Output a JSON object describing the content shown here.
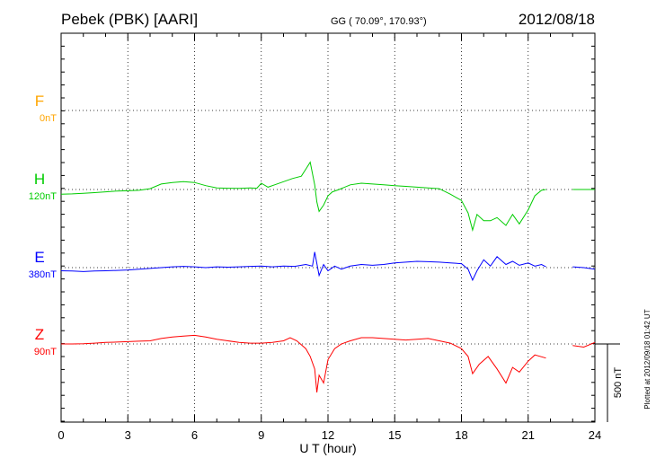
{
  "header": {
    "station": "Pebek (PBK)  [AARI]",
    "coords": "GG ( 70.09°, 170.93°)",
    "date": "2012/08/18"
  },
  "footer": {
    "plotted_note": "Plotted at 2012/09/18 01:42 UT"
  },
  "colors": {
    "F": "#ffa500",
    "H": "#00cc00",
    "E": "#0000ff",
    "Z": "#ff0000",
    "grid": "#000000"
  },
  "chart_data": {
    "type": "line",
    "title": "Pebek (PBK)  [AARI]",
    "xlabel": "U T (hour)",
    "xlim": [
      0,
      24
    ],
    "xticks": [
      0,
      3,
      6,
      9,
      12,
      15,
      18,
      21,
      24
    ],
    "scale_bar_label": "500 nT",
    "scale_bar_nT": 500,
    "grid": true,
    "components": [
      {
        "name": "F",
        "offset_label": "0nT",
        "color": "#ffa500",
        "x": [],
        "y": []
      },
      {
        "name": "H",
        "offset_label": "120nT",
        "color": "#00cc00",
        "x": [
          0,
          0.5,
          1,
          1.5,
          2,
          2.5,
          3,
          3.5,
          4,
          4.5,
          5,
          5.5,
          6,
          6.5,
          7,
          7.5,
          8,
          8.5,
          8.8,
          9,
          9.3,
          9.6,
          10,
          10.4,
          10.8,
          11,
          11.2,
          11.4,
          11.5,
          11.6,
          11.8,
          12,
          12.2,
          12.5,
          13,
          13.5,
          14,
          14.5,
          15,
          15.5,
          16,
          16.5,
          17,
          17.5,
          18,
          18.3,
          18.5,
          18.7,
          19,
          19.3,
          19.6,
          20,
          20.3,
          20.6,
          21,
          21.3,
          21.6,
          21.8,
          null,
          23,
          23.5,
          24
        ],
        "y": [
          -30,
          -28,
          -25,
          -20,
          -15,
          -10,
          -8,
          -5,
          5,
          35,
          45,
          50,
          45,
          25,
          10,
          8,
          7,
          10,
          8,
          40,
          15,
          30,
          50,
          70,
          85,
          130,
          175,
          30,
          -80,
          -140,
          -100,
          -40,
          -15,
          0,
          30,
          40,
          35,
          30,
          25,
          20,
          15,
          10,
          5,
          -30,
          -70,
          -150,
          -260,
          -160,
          -200,
          -200,
          -180,
          -230,
          -160,
          -220,
          -130,
          -40,
          -5,
          0,
          null,
          0,
          0,
          0
        ]
      },
      {
        "name": "E",
        "offset_label": "380nT",
        "color": "#0000ff",
        "x": [
          0,
          0.5,
          1,
          1.5,
          2,
          2.5,
          3,
          3.5,
          4,
          4.5,
          5,
          5.5,
          6,
          6.5,
          7,
          7.5,
          8,
          8.5,
          9,
          9.5,
          10,
          10.5,
          11,
          11.3,
          11.4,
          11.6,
          11.8,
          12,
          12.3,
          12.6,
          13,
          13.5,
          14,
          14.5,
          15,
          15.5,
          16,
          16.5,
          17,
          17.5,
          18,
          18.3,
          18.5,
          18.7,
          19,
          19.3,
          19.6,
          20,
          20.3,
          20.6,
          21,
          21.3,
          21.6,
          21.8,
          null,
          23,
          23.5,
          24
        ],
        "y": [
          -20,
          -22,
          -25,
          -22,
          -20,
          -18,
          -15,
          -10,
          -5,
          0,
          5,
          8,
          5,
          0,
          5,
          3,
          5,
          8,
          10,
          5,
          10,
          8,
          20,
          10,
          100,
          -50,
          20,
          -20,
          10,
          -10,
          10,
          20,
          15,
          20,
          30,
          35,
          40,
          38,
          35,
          30,
          25,
          -10,
          -80,
          -20,
          50,
          10,
          70,
          20,
          40,
          15,
          30,
          10,
          20,
          5,
          null,
          5,
          0,
          -10
        ]
      },
      {
        "name": "Z",
        "offset_label": "90nT",
        "color": "#ff0000",
        "x": [
          0,
          0.5,
          1,
          1.5,
          2,
          2.5,
          3,
          3.5,
          4,
          4.5,
          5,
          5.5,
          6,
          6.5,
          7,
          7.5,
          8,
          8.5,
          9,
          9.5,
          10,
          10.3,
          10.6,
          11,
          11.2,
          11.4,
          11.5,
          11.6,
          11.8,
          12,
          12.3,
          12.6,
          13,
          13.5,
          14,
          14.5,
          15,
          15.5,
          16,
          16.5,
          17,
          17.5,
          18,
          18.3,
          18.5,
          18.8,
          19.2,
          19.6,
          20,
          20.3,
          20.6,
          21,
          21.3,
          21.8,
          null,
          23,
          23.5,
          24
        ],
        "y": [
          0,
          0,
          2,
          5,
          10,
          12,
          15,
          18,
          20,
          35,
          45,
          50,
          55,
          45,
          30,
          20,
          10,
          5,
          5,
          10,
          20,
          40,
          20,
          -30,
          -80,
          -160,
          -310,
          -200,
          -250,
          -100,
          -30,
          0,
          20,
          40,
          40,
          35,
          30,
          25,
          30,
          35,
          20,
          5,
          -30,
          -80,
          -190,
          -130,
          -80,
          -160,
          -250,
          -150,
          -180,
          -110,
          -70,
          -90,
          null,
          -10,
          -20,
          10
        ]
      }
    ]
  }
}
